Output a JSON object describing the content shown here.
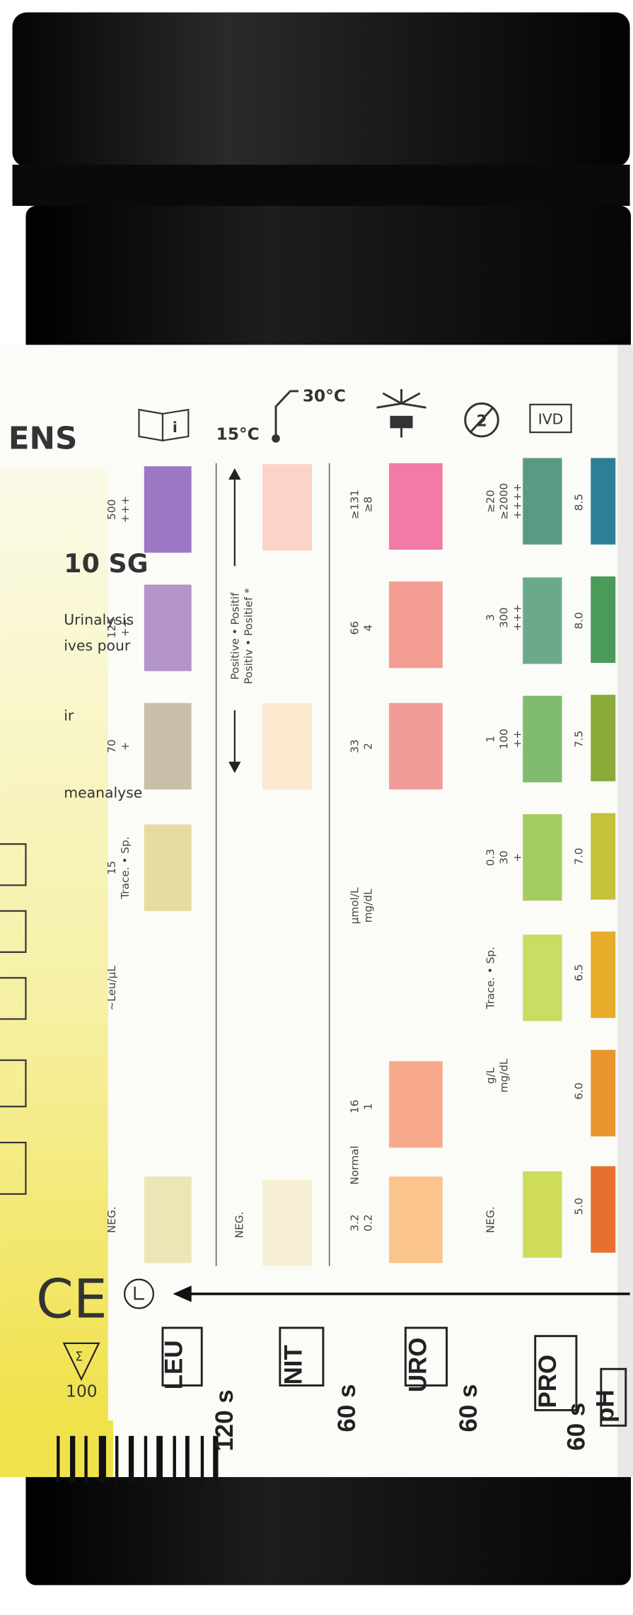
{
  "label": {
    "brand": "ENS",
    "product": "10 SG",
    "lines": [
      "Urinalysis",
      "ives pour",
      "ir",
      "meanalyse"
    ],
    "ce": "CE",
    "count": "100"
  },
  "icons": {
    "temp_low": "15°C",
    "temp_high": "30°C",
    "ivd": "IVD"
  },
  "tests": [
    {
      "name": "LEU",
      "time": "120 s",
      "unit": [
        "~Leu/µL"
      ],
      "levels": [
        [
          "NEG."
        ],
        [
          "15",
          "Trace. • Sp."
        ],
        [
          "70",
          "+"
        ],
        [
          "125",
          "++"
        ],
        [
          "500",
          "+++"
        ]
      ]
    },
    {
      "name": "NIT",
      "time": "60 s",
      "unit": [
        "Positive • Positif",
        "Positiv • Positief *"
      ],
      "levels": [
        [
          "NEG."
        ]
      ]
    },
    {
      "name": "URO",
      "time": "60 s",
      "unit": [
        "µmol/L",
        "mg/dL"
      ],
      "levels": [
        [
          "3.2",
          "0.2"
        ],
        [
          "Normal"
        ],
        [
          "16",
          "1"
        ],
        [
          "33",
          "2"
        ],
        [
          "66",
          "4"
        ],
        [
          "≥131",
          "≥8"
        ]
      ]
    },
    {
      "name": "PRO",
      "time": "60 s",
      "unit": [
        "g/L",
        "mg/dL"
      ],
      "levels": [
        [
          "NEG."
        ],
        [
          "Trace. • Sp."
        ],
        [
          "0.3",
          "30",
          "+"
        ],
        [
          "1",
          "100",
          "++"
        ],
        [
          "3",
          "300",
          "+++"
        ],
        [
          "≥20",
          "≥2000",
          "++++"
        ]
      ]
    },
    {
      "name": "pH",
      "time": "",
      "unit": [],
      "levels": [
        [
          "5.0"
        ],
        [
          "6.0"
        ],
        [
          "6.5"
        ],
        [
          "7.0"
        ],
        [
          "7.5"
        ],
        [
          "8.0"
        ],
        [
          "8.5"
        ]
      ]
    }
  ]
}
